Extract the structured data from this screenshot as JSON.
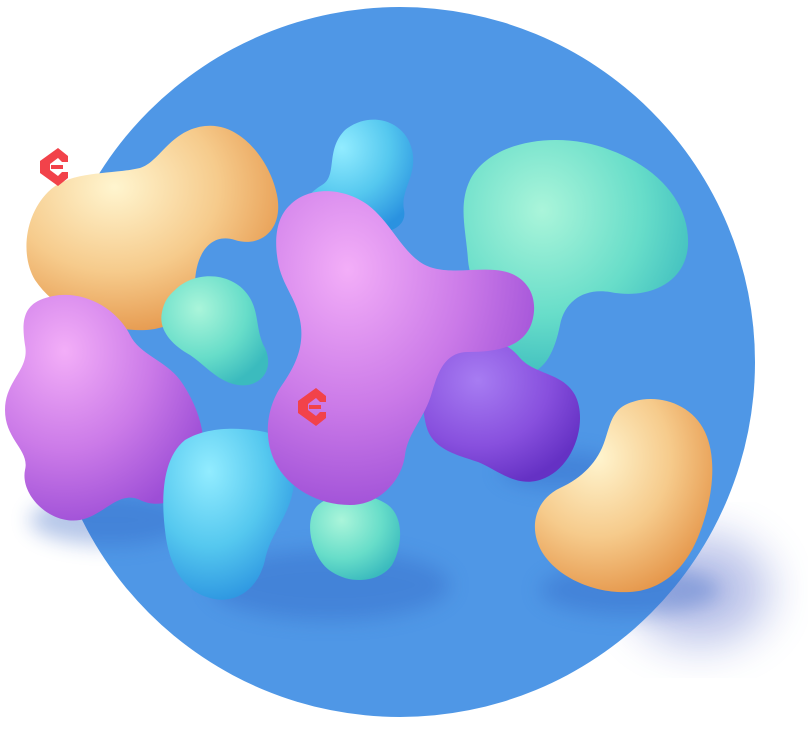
{
  "illustration": {
    "circle_color": "#4F97E6",
    "shadow_color": "#3F5FC8",
    "palette": {
      "peach": [
        "#FFF3C9",
        "#F6C98A",
        "#E79A4E"
      ],
      "violet": [
        "#F0A8F6",
        "#C877E6",
        "#9E4FD8"
      ],
      "deep_violet": [
        "#A674F0",
        "#8A52E0",
        "#6A35C8"
      ],
      "mint": [
        "#A6F3D6",
        "#66DDC9",
        "#3FC0C0"
      ],
      "sky": [
        "#8EE9FF",
        "#52C6EE",
        "#2D98E3"
      ],
      "logo_red": "#F2424A"
    },
    "logo_marks": [
      "logo-mark-top-left",
      "logo-mark-center"
    ]
  }
}
